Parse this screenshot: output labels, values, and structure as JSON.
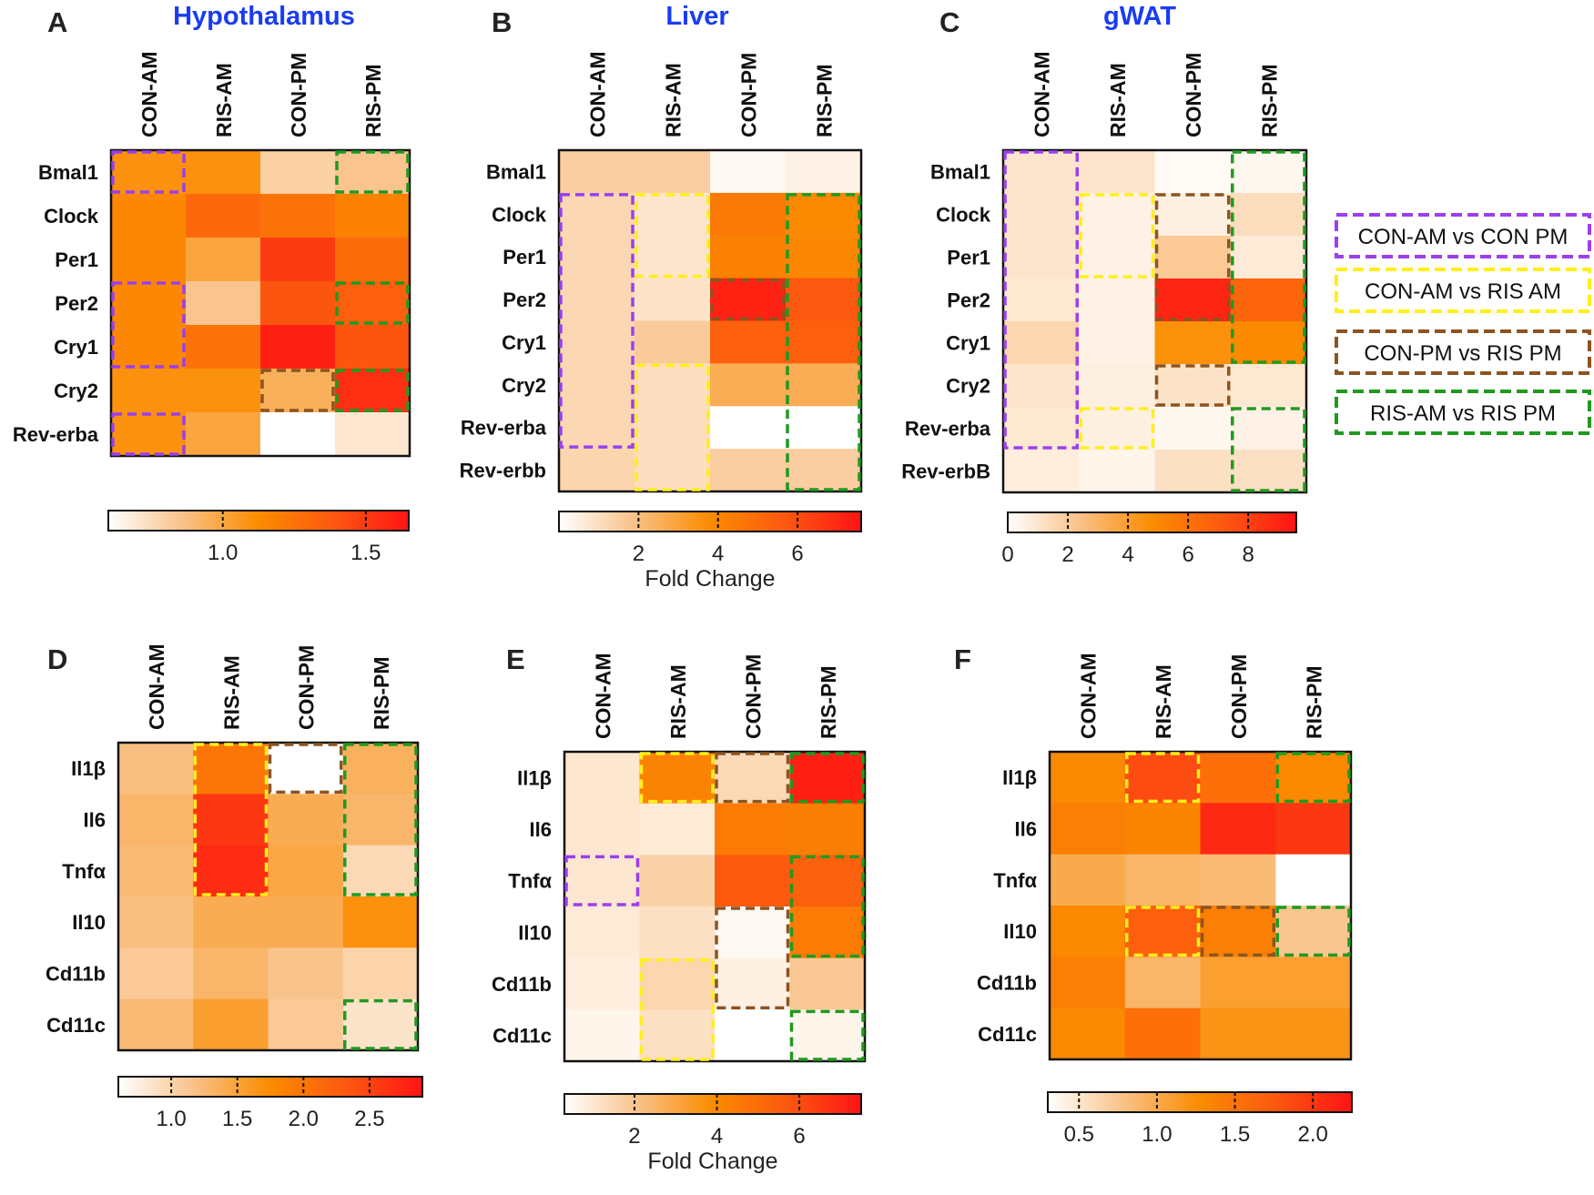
{
  "panels": [
    {
      "id": "A",
      "letter": "A",
      "title": "Hypothalamus",
      "chart_data": {
        "type": "heatmap",
        "columns": [
          "CON-AM",
          "RIS-AM",
          "CON-PM",
          "RIS-PM"
        ],
        "rows": [
          "Bmal1",
          "Clock",
          "Per1",
          "Per2",
          "Cry1",
          "Cry2",
          "Rev-erba"
        ],
        "values": [
          [
            1.1,
            1.1,
            0.8,
            0.85
          ],
          [
            1.15,
            1.3,
            1.25,
            1.18
          ],
          [
            1.15,
            1.0,
            1.5,
            1.28
          ],
          [
            1.15,
            0.85,
            1.4,
            1.35
          ],
          [
            1.15,
            1.25,
            1.6,
            1.4
          ],
          [
            1.1,
            1.1,
            0.95,
            1.55
          ],
          [
            1.1,
            1.0,
            0.55,
            0.7
          ]
        ],
        "colorbar": {
          "min": 0.6,
          "max": 1.65,
          "ticks": [
            1.0,
            1.5
          ],
          "tick_labels": [
            "1.0",
            "1.5"
          ],
          "label": ""
        },
        "highlights": [
          {
            "comparison": "con-am-vs-con-pm",
            "row_range": [
              0,
              0
            ],
            "col_range": [
              0,
              0
            ]
          },
          {
            "comparison": "con-am-vs-con-pm",
            "row_range": [
              3,
              4
            ],
            "col_range": [
              0,
              0
            ]
          },
          {
            "comparison": "con-am-vs-con-pm",
            "row_range": [
              6,
              6
            ],
            "col_range": [
              0,
              0
            ]
          },
          {
            "comparison": "ris-am-vs-ris-pm",
            "row_range": [
              0,
              0
            ],
            "col_range": [
              3,
              3
            ]
          },
          {
            "comparison": "ris-am-vs-ris-pm",
            "row_range": [
              3,
              3
            ],
            "col_range": [
              3,
              3
            ]
          },
          {
            "comparison": "ris-am-vs-ris-pm",
            "row_range": [
              5,
              5
            ],
            "col_range": [
              3,
              3
            ]
          },
          {
            "comparison": "con-pm-vs-ris-pm",
            "row_range": [
              5,
              5
            ],
            "col_range": [
              2,
              2
            ]
          }
        ]
      }
    },
    {
      "id": "B",
      "letter": "B",
      "title": "Liver",
      "chart_data": {
        "type": "heatmap",
        "columns": [
          "CON-AM",
          "RIS-AM",
          "CON-PM",
          "RIS-PM"
        ],
        "rows": [
          "Bmal1",
          "Clock",
          "Per1",
          "Per2",
          "Cry1",
          "Cry2",
          "Rev-erba",
          "Rev-erbb"
        ],
        "values": [
          [
            1.5,
            1.5,
            0.2,
            0.4
          ],
          [
            1.2,
            0.8,
            4.5,
            3.9
          ],
          [
            1.2,
            0.8,
            4.2,
            4.0
          ],
          [
            1.2,
            0.9,
            7.2,
            5.7
          ],
          [
            1.2,
            1.6,
            5.4,
            5.4
          ],
          [
            1.2,
            1.0,
            2.6,
            2.6
          ],
          [
            1.2,
            1.0,
            0.0,
            0.0
          ],
          [
            1.3,
            1.0,
            1.5,
            1.5
          ]
        ],
        "colorbar": {
          "min": 0,
          "max": 7.6,
          "ticks": [
            2,
            4,
            6
          ],
          "tick_labels": [
            "2",
            "4",
            "6"
          ],
          "label": "Fold Change"
        },
        "highlights": [
          {
            "comparison": "con-am-vs-con-pm",
            "row_range": [
              1,
              6
            ],
            "col_range": [
              0,
              0
            ]
          },
          {
            "comparison": "con-am-vs-ris-am",
            "row_range": [
              1,
              2
            ],
            "col_range": [
              1,
              1
            ]
          },
          {
            "comparison": "con-am-vs-ris-am",
            "row_range": [
              5,
              7
            ],
            "col_range": [
              1,
              1
            ]
          },
          {
            "comparison": "con-pm-vs-ris-pm",
            "row_range": [
              3,
              3
            ],
            "col_range": [
              2,
              2
            ]
          },
          {
            "comparison": "ris-am-vs-ris-pm",
            "row_range": [
              1,
              7
            ],
            "col_range": [
              3,
              3
            ]
          }
        ]
      }
    },
    {
      "id": "C",
      "letter": "C",
      "title": "gWAT",
      "chart_data": {
        "type": "heatmap",
        "columns": [
          "CON-AM",
          "RIS-AM",
          "CON-PM",
          "RIS-PM"
        ],
        "rows": [
          "Bmal1",
          "Clock",
          "Per1",
          "Per2",
          "Cry1",
          "Cry2",
          "Rev-erba",
          "Rev-erbB"
        ],
        "values": [
          [
            1.0,
            1.0,
            0.2,
            0.3
          ],
          [
            1.0,
            0.5,
            0.6,
            1.3
          ],
          [
            1.0,
            0.5,
            2.1,
            0.8
          ],
          [
            0.9,
            0.5,
            9.0,
            6.6
          ],
          [
            1.6,
            0.5,
            4.6,
            4.9
          ],
          [
            1.0,
            0.6,
            1.1,
            0.9
          ],
          [
            0.9,
            0.6,
            0.3,
            0.5
          ],
          [
            0.7,
            0.4,
            1.2,
            1.2
          ]
        ],
        "colorbar": {
          "min": 0,
          "max": 9.6,
          "ticks": [
            0,
            2,
            4,
            6,
            8
          ],
          "tick_labels": [
            "0",
            "2",
            "4",
            "6",
            "8"
          ],
          "label": ""
        },
        "highlights": [
          {
            "comparison": "con-am-vs-con-pm",
            "row_range": [
              0,
              6
            ],
            "col_range": [
              0,
              0
            ]
          },
          {
            "comparison": "con-am-vs-ris-am",
            "row_range": [
              1,
              2
            ],
            "col_range": [
              1,
              1
            ]
          },
          {
            "comparison": "con-am-vs-ris-am",
            "row_range": [
              6,
              6
            ],
            "col_range": [
              1,
              1
            ]
          },
          {
            "comparison": "con-pm-vs-ris-pm",
            "row_range": [
              1,
              3
            ],
            "col_range": [
              2,
              2
            ]
          },
          {
            "comparison": "con-pm-vs-ris-pm",
            "row_range": [
              5,
              5
            ],
            "col_range": [
              2,
              2
            ]
          },
          {
            "comparison": "ris-am-vs-ris-pm",
            "row_range": [
              0,
              4
            ],
            "col_range": [
              3,
              3
            ]
          },
          {
            "comparison": "ris-am-vs-ris-pm",
            "row_range": [
              6,
              7
            ],
            "col_range": [
              3,
              3
            ]
          }
        ]
      }
    },
    {
      "id": "D",
      "letter": "D",
      "title": "",
      "chart_data": {
        "type": "heatmap",
        "columns": [
          "CON-AM",
          "RIS-AM",
          "CON-PM",
          "RIS-PM"
        ],
        "rows": [
          "Il1β",
          "Il6",
          "Tnfα",
          "Il10",
          "Cd11b",
          "Cd11c"
        ],
        "values": [
          [
            1.2,
            2.0,
            0.6,
            1.35
          ],
          [
            1.3,
            2.6,
            1.4,
            1.3
          ],
          [
            1.25,
            2.7,
            1.45,
            0.95
          ],
          [
            1.2,
            1.4,
            1.4,
            1.7
          ],
          [
            1.1,
            1.3,
            1.15,
            1.0
          ],
          [
            1.25,
            1.55,
            1.1,
            0.85
          ]
        ],
        "colorbar": {
          "min": 0.6,
          "max": 2.9,
          "ticks": [
            1.0,
            1.5,
            2.0,
            2.5
          ],
          "tick_labels": [
            "1.0",
            "1.5",
            "2.0",
            "2.5"
          ],
          "label": ""
        },
        "highlights": [
          {
            "comparison": "con-am-vs-ris-am",
            "row_range": [
              0,
              2
            ],
            "col_range": [
              1,
              1
            ]
          },
          {
            "comparison": "con-pm-vs-ris-pm",
            "row_range": [
              0,
              0
            ],
            "col_range": [
              2,
              2
            ]
          },
          {
            "comparison": "ris-am-vs-ris-pm",
            "row_range": [
              0,
              2
            ],
            "col_range": [
              3,
              3
            ]
          },
          {
            "comparison": "ris-am-vs-ris-pm",
            "row_range": [
              5,
              5
            ],
            "col_range": [
              3,
              3
            ]
          }
        ]
      }
    },
    {
      "id": "E",
      "letter": "E",
      "title": "",
      "chart_data": {
        "type": "heatmap",
        "columns": [
          "CON-AM",
          "RIS-AM",
          "CON-PM",
          "RIS-PM"
        ],
        "rows": [
          "Il1β",
          "Il6",
          "Tnfα",
          "Il10",
          "Cd11b",
          "Cd11c"
        ],
        "values": [
          [
            1.0,
            4.2,
            1.4,
            7.2
          ],
          [
            1.0,
            0.9,
            4.5,
            4.4
          ],
          [
            1.0,
            1.6,
            5.6,
            5.4
          ],
          [
            0.9,
            1.2,
            0.5,
            4.5
          ],
          [
            0.8,
            1.5,
            0.7,
            1.9
          ],
          [
            0.6,
            1.2,
            0.3,
            0.6
          ]
        ],
        "colorbar": {
          "min": 0.3,
          "max": 7.5,
          "ticks": [
            2,
            4,
            6
          ],
          "tick_labels": [
            "2",
            "4",
            "6"
          ],
          "label": "Fold Change"
        },
        "highlights": [
          {
            "comparison": "con-am-vs-con-pm",
            "row_range": [
              2,
              2
            ],
            "col_range": [
              0,
              0
            ]
          },
          {
            "comparison": "con-am-vs-ris-am",
            "row_range": [
              0,
              0
            ],
            "col_range": [
              1,
              1
            ]
          },
          {
            "comparison": "con-am-vs-ris-am",
            "row_range": [
              4,
              5
            ],
            "col_range": [
              1,
              1
            ]
          },
          {
            "comparison": "con-pm-vs-ris-pm",
            "row_range": [
              0,
              0
            ],
            "col_range": [
              2,
              2
            ]
          },
          {
            "comparison": "con-pm-vs-ris-pm",
            "row_range": [
              3,
              4
            ],
            "col_range": [
              2,
              2
            ]
          },
          {
            "comparison": "ris-am-vs-ris-pm",
            "row_range": [
              0,
              0
            ],
            "col_range": [
              3,
              3
            ]
          },
          {
            "comparison": "ris-am-vs-ris-pm",
            "row_range": [
              2,
              3
            ],
            "col_range": [
              3,
              3
            ]
          },
          {
            "comparison": "ris-am-vs-ris-pm",
            "row_range": [
              5,
              5
            ],
            "col_range": [
              3,
              3
            ]
          }
        ]
      }
    },
    {
      "id": "F",
      "letter": "F",
      "title": "",
      "chart_data": {
        "type": "heatmap",
        "columns": [
          "CON-AM",
          "RIS-AM",
          "CON-PM",
          "RIS-PM"
        ],
        "rows": [
          "Il1β",
          "Il6",
          "Tnfα",
          "Il10",
          "Cd11b",
          "Cd11c"
        ],
        "values": [
          [
            1.3,
            1.85,
            1.55,
            1.3
          ],
          [
            1.4,
            1.35,
            2.1,
            2.0
          ],
          [
            1.0,
            0.9,
            0.85,
            0.3
          ],
          [
            1.3,
            1.7,
            1.4,
            0.75
          ],
          [
            1.4,
            0.9,
            1.1,
            1.1
          ],
          [
            1.3,
            1.55,
            1.2,
            1.2
          ]
        ],
        "colorbar": {
          "min": 0.3,
          "max": 2.25,
          "ticks": [
            0.5,
            1.0,
            1.5,
            2.0
          ],
          "tick_labels": [
            "0.5",
            "1.0",
            "1.5",
            "2.0"
          ],
          "label": ""
        },
        "highlights": [
          {
            "comparison": "con-am-vs-ris-am",
            "row_range": [
              0,
              0
            ],
            "col_range": [
              1,
              1
            ]
          },
          {
            "comparison": "con-am-vs-ris-am",
            "row_range": [
              3,
              3
            ],
            "col_range": [
              1,
              1
            ]
          },
          {
            "comparison": "con-pm-vs-ris-pm",
            "row_range": [
              3,
              3
            ],
            "col_range": [
              2,
              2
            ]
          },
          {
            "comparison": "ris-am-vs-ris-pm",
            "row_range": [
              0,
              0
            ],
            "col_range": [
              3,
              3
            ]
          },
          {
            "comparison": "ris-am-vs-ris-pm",
            "row_range": [
              3,
              3
            ],
            "col_range": [
              3,
              3
            ]
          }
        ]
      }
    }
  ],
  "legend": {
    "items": [
      {
        "key": "con-am-vs-con-pm",
        "label": "CON-AM vs CON PM",
        "color": "#9b3ff0"
      },
      {
        "key": "con-am-vs-ris-am",
        "label": "CON-AM vs RIS AM",
        "color": "#ffef1a"
      },
      {
        "key": "con-pm-vs-ris-pm",
        "label": "CON-PM vs RIS PM",
        "color": "#8c5420"
      },
      {
        "key": "ris-am-vs-ris-pm",
        "label": "RIS-AM vs RIS PM",
        "color": "#1f9a1f"
      }
    ]
  },
  "colors": {
    "title": "#1a3cf0",
    "scale_low": "#ffffff",
    "scale_mid1": "#f9c187",
    "scale_mid2": "#fb8c00",
    "scale_mid3": "#fc5810",
    "scale_high": "#ff1414",
    "frame": "#111111"
  }
}
